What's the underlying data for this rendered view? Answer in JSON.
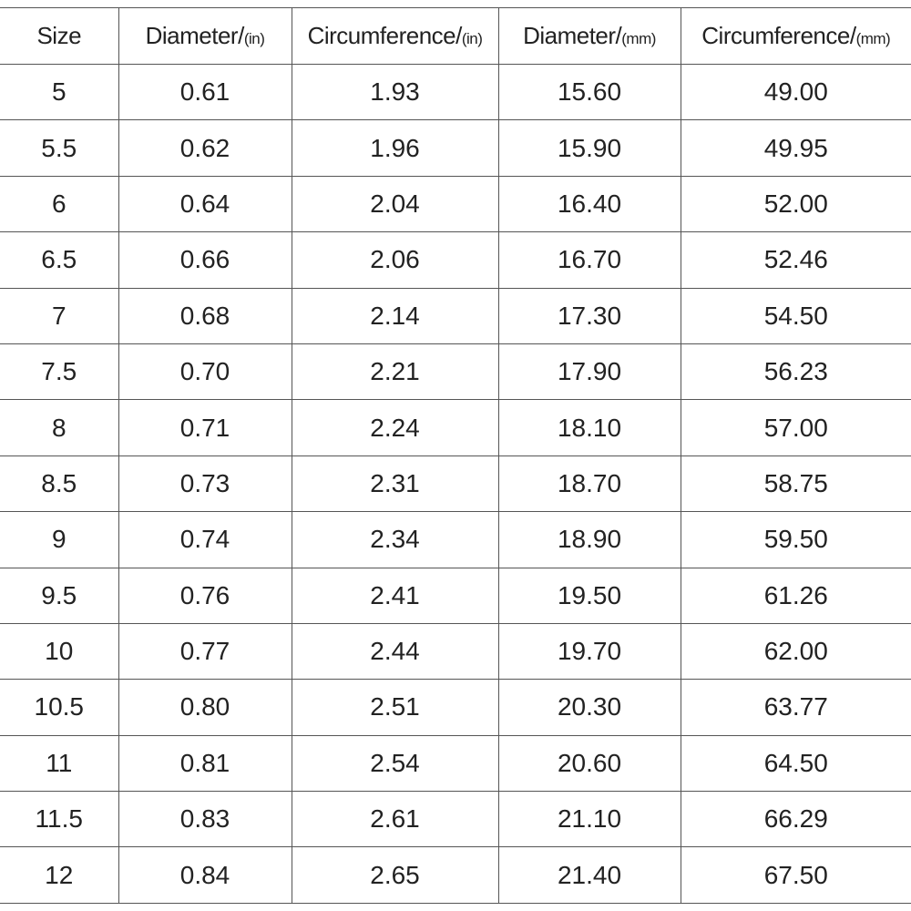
{
  "headers": [
    {
      "label": "Size",
      "unit": ""
    },
    {
      "label": "Diameter/",
      "unit": "(in)"
    },
    {
      "label": "Circumference/",
      "unit": "(in)"
    },
    {
      "label": "Diameter/",
      "unit": "(mm)"
    },
    {
      "label": "Circumference/",
      "unit": "(mm)"
    }
  ],
  "rows": [
    [
      "5",
      "0.61",
      "1.93",
      "15.60",
      "49.00"
    ],
    [
      "5.5",
      "0.62",
      "1.96",
      "15.90",
      "49.95"
    ],
    [
      "6",
      "0.64",
      "2.04",
      "16.40",
      "52.00"
    ],
    [
      "6.5",
      "0.66",
      "2.06",
      "16.70",
      "52.46"
    ],
    [
      "7",
      "0.68",
      "2.14",
      "17.30",
      "54.50"
    ],
    [
      "7.5",
      "0.70",
      "2.21",
      "17.90",
      "56.23"
    ],
    [
      "8",
      "0.71",
      "2.24",
      "18.10",
      "57.00"
    ],
    [
      "8.5",
      "0.73",
      "2.31",
      "18.70",
      "58.75"
    ],
    [
      "9",
      "0.74",
      "2.34",
      "18.90",
      "59.50"
    ],
    [
      "9.5",
      "0.76",
      "2.41",
      "19.50",
      "61.26"
    ],
    [
      "10",
      "0.77",
      "2.44",
      "19.70",
      "62.00"
    ],
    [
      "10.5",
      "0.80",
      "2.51",
      "20.30",
      "63.77"
    ],
    [
      "11",
      "0.81",
      "2.54",
      "20.60",
      "64.50"
    ],
    [
      "11.5",
      "0.83",
      "2.61",
      "21.10",
      "66.29"
    ],
    [
      "12",
      "0.84",
      "2.65",
      "21.40",
      "67.50"
    ]
  ]
}
